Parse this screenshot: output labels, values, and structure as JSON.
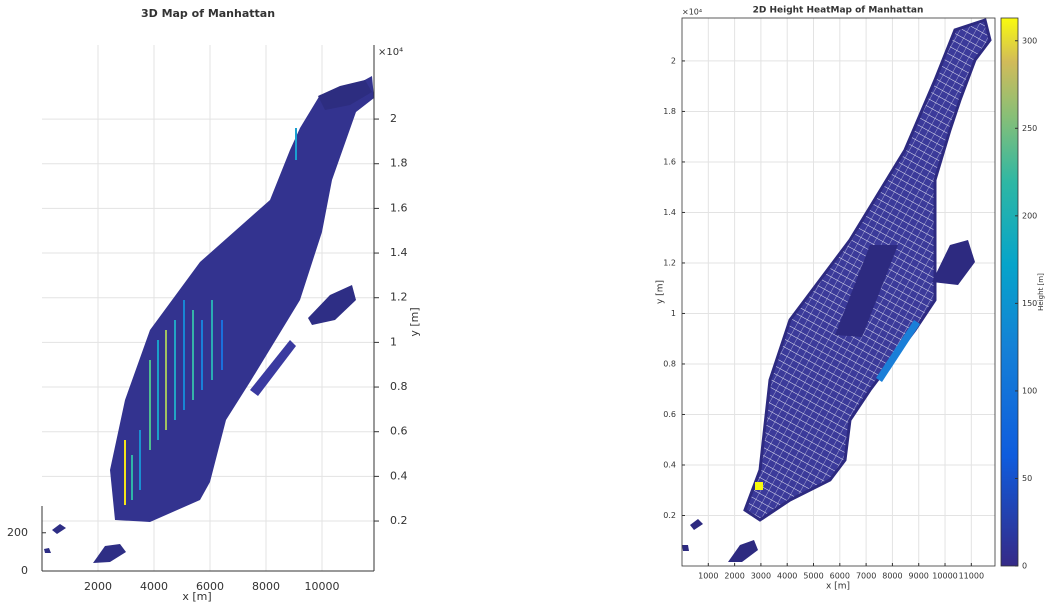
{
  "chart_data": [
    {
      "type": "map3d",
      "title": "3D Map of Manhattan",
      "xlabel": "x [m]",
      "ylabel": "y [m]",
      "y_exponent": "×10⁴",
      "xlim": [
        0,
        12000
      ],
      "xticks": [
        2000,
        4000,
        6000,
        8000,
        10000
      ],
      "ylim": [
        0,
        22000
      ],
      "yticks": [
        {
          "value": 2000,
          "label": "0.2"
        },
        {
          "value": 4000,
          "label": "0.4"
        },
        {
          "value": 6000,
          "label": "0.6"
        },
        {
          "value": 8000,
          "label": "0.8"
        },
        {
          "value": 10000,
          "label": "1"
        },
        {
          "value": 12000,
          "label": "1.2"
        },
        {
          "value": 14000,
          "label": "1.4"
        },
        {
          "value": 16000,
          "label": "1.6"
        },
        {
          "value": 18000,
          "label": "1.8"
        },
        {
          "value": 20000,
          "label": "2"
        }
      ],
      "zlim": [
        0,
        340
      ],
      "zticks": [
        0,
        200
      ],
      "grid": true
    },
    {
      "type": "heatmap",
      "title": "2D Height HeatMap of Manhattan",
      "xlabel": "x [m]",
      "ylabel": "y [m]",
      "y_exponent": "×10⁴",
      "xlim": [
        0,
        11900
      ],
      "xticks": [
        1000,
        2000,
        3000,
        4000,
        5000,
        6000,
        7000,
        8000,
        9000,
        10000,
        11000
      ],
      "ylim": [
        0,
        21700
      ],
      "yticks": [
        {
          "value": 2000,
          "label": "0.2"
        },
        {
          "value": 4000,
          "label": "0.4"
        },
        {
          "value": 6000,
          "label": "0.6"
        },
        {
          "value": 8000,
          "label": "0.8"
        },
        {
          "value": 10000,
          "label": "1"
        },
        {
          "value": 12000,
          "label": "1.2"
        },
        {
          "value": 14000,
          "label": "1.4"
        },
        {
          "value": 16000,
          "label": "1.6"
        },
        {
          "value": 18000,
          "label": "1.8"
        },
        {
          "value": 20000,
          "label": "2"
        }
      ],
      "grid": true,
      "colorbar": {
        "label": "Height [m]",
        "lim": [
          0,
          313
        ],
        "ticks": [
          0,
          50,
          100,
          150,
          200,
          250,
          300
        ]
      }
    }
  ]
}
